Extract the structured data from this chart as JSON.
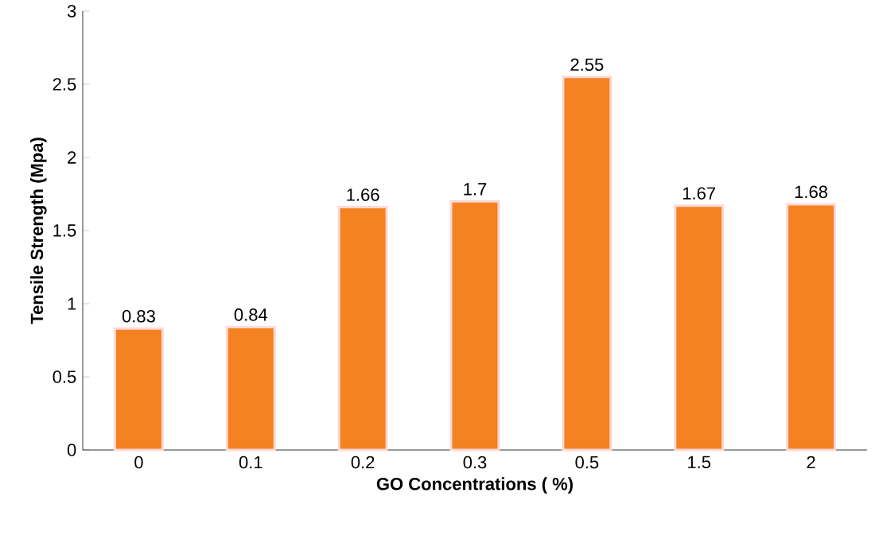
{
  "chart_data": {
    "type": "bar",
    "xlabel": "GO Concentrations ( %)",
    "ylabel": "Tensile Strength (Mpa)",
    "categories": [
      "0",
      "0.1",
      "0.2",
      "0.3",
      "0.5",
      "1.5",
      "2"
    ],
    "values": [
      0.83,
      0.84,
      1.66,
      1.7,
      2.55,
      1.67,
      1.68
    ],
    "color": "#f58220",
    "ylim": [
      0,
      3
    ],
    "yticks": [
      0,
      0.5,
      1,
      1.5,
      2,
      2.5,
      3
    ],
    "data_labels": true
  }
}
